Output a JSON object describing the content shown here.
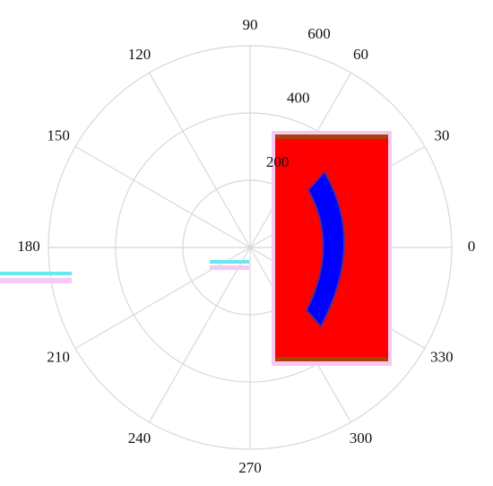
{
  "chart_data": {
    "type": "polar",
    "thetaticks": [
      0,
      30,
      60,
      90,
      120,
      150,
      180,
      210,
      240,
      270,
      300,
      330
    ],
    "rlim": [
      0,
      600
    ],
    "rticks": [
      200,
      400,
      600
    ],
    "grid": true
  }
}
